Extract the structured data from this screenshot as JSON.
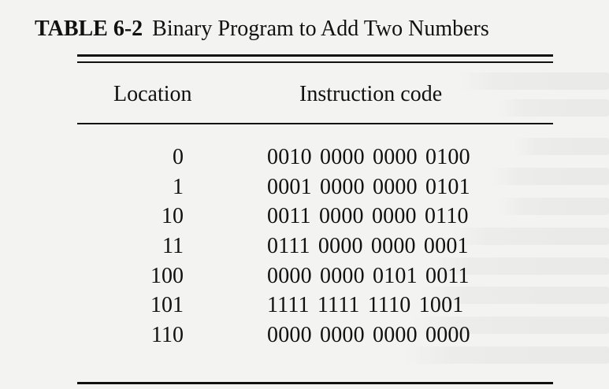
{
  "table": {
    "caption_label": "TABLE 6-2",
    "caption_text": "Binary Program to Add Two Numbers",
    "columns": [
      "Location",
      "Instruction code"
    ],
    "rows": [
      {
        "location": "0",
        "code": "0010 0000 0000 0100"
      },
      {
        "location": "1",
        "code": "0001 0000 0000 0101"
      },
      {
        "location": "10",
        "code": "0011 0000 0000 0110"
      },
      {
        "location": "11",
        "code": "0111 0000 0000 0001"
      },
      {
        "location": "100",
        "code": "0000 0000 0101 0011"
      },
      {
        "location": "101",
        "code": "1111 1111 1110 1001"
      },
      {
        "location": "110",
        "code": "0000 0000 0000 0000"
      }
    ]
  }
}
